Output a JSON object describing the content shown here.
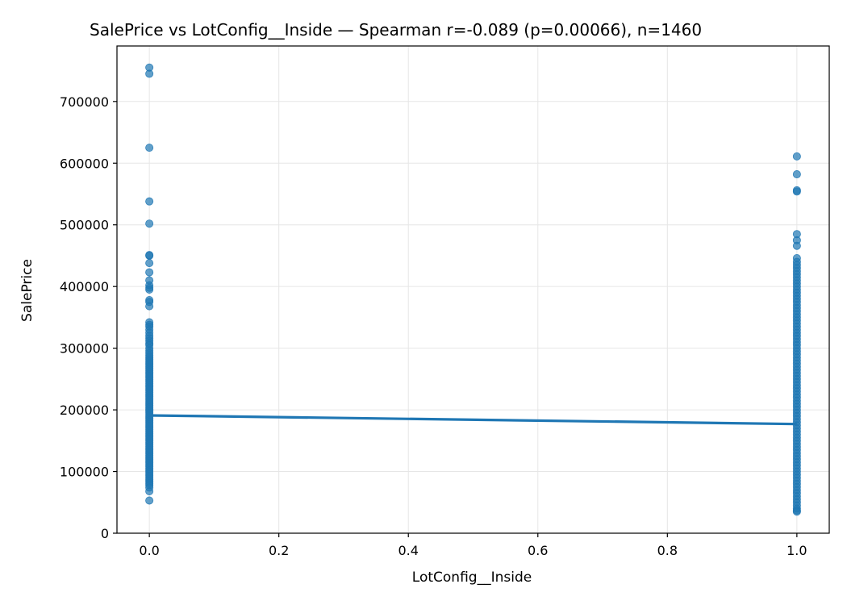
{
  "chart_data": {
    "type": "scatter",
    "title": "SalePrice vs LotConfig__Inside — Spearman r=-0.089 (p=0.00066), n=1460",
    "xlabel": "LotConfig__Inside",
    "ylabel": "SalePrice",
    "xlim": [
      -0.05,
      1.05
    ],
    "ylim": [
      0,
      790000
    ],
    "x_ticks": [
      0.0,
      0.2,
      0.4,
      0.6,
      0.8,
      1.0
    ],
    "x_tick_labels": [
      "0.0",
      "0.2",
      "0.4",
      "0.6",
      "0.8",
      "1.0"
    ],
    "y_ticks": [
      0,
      100000,
      200000,
      300000,
      400000,
      500000,
      600000,
      700000
    ],
    "y_tick_labels": [
      "0",
      "100000",
      "200000",
      "300000",
      "400000",
      "500000",
      "600000",
      "700000"
    ],
    "grid": true,
    "colors": {
      "points": "#1f77b4",
      "trend": "#1f77b4",
      "grid": "#e6e6e6"
    },
    "series": [
      {
        "x": 0,
        "values": [
          755000,
          745000,
          625000,
          538000,
          502000,
          451000,
          450000,
          438000,
          423000,
          410000,
          402000,
          398000,
          395000,
          378000,
          375000,
          368000,
          342000,
          338000,
          335000,
          330000,
          325000,
          320000,
          316000,
          312000,
          308000,
          305000,
          300000,
          296000,
          292000,
          288000,
          285000,
          282000,
          279000,
          276000,
          273000,
          270000,
          267000,
          264000,
          261000,
          258000,
          255000,
          252000,
          249000,
          246000,
          243000,
          240000,
          237000,
          234000,
          231000,
          228000,
          225000,
          222000,
          219000,
          216000,
          213000,
          210000,
          207000,
          204000,
          201000,
          198000,
          195000,
          192000,
          189000,
          186000,
          183000,
          180000,
          177000,
          174000,
          171000,
          168000,
          165000,
          162000,
          159000,
          156000,
          153000,
          150000,
          147000,
          144000,
          141000,
          138000,
          135000,
          132000,
          129000,
          126000,
          123000,
          120000,
          117000,
          114000,
          111000,
          108000,
          105000,
          102000,
          99000,
          96000,
          93000,
          90000,
          87000,
          84000,
          81000,
          78000,
          74000,
          68000,
          53000
        ]
      },
      {
        "x": 1,
        "values": [
          611000,
          582000,
          556000,
          554000,
          485000,
          475000,
          466000,
          446000,
          440000,
          435000,
          430000,
          425000,
          420000,
          415000,
          410000,
          405000,
          400000,
          395000,
          390000,
          385000,
          380000,
          375000,
          370000,
          365000,
          360000,
          355000,
          350000,
          345000,
          340000,
          335000,
          330000,
          325000,
          320000,
          315000,
          310000,
          305000,
          300000,
          295000,
          290000,
          285000,
          280000,
          275000,
          270000,
          265000,
          260000,
          255000,
          250000,
          245000,
          240000,
          235000,
          230000,
          225000,
          220000,
          215000,
          210000,
          205000,
          200000,
          195000,
          190000,
          185000,
          180000,
          175000,
          170000,
          165000,
          160000,
          155000,
          150000,
          145000,
          140000,
          135000,
          130000,
          125000,
          120000,
          115000,
          110000,
          105000,
          100000,
          95000,
          90000,
          85000,
          80000,
          75000,
          70000,
          65000,
          60000,
          55000,
          50000,
          45000,
          40000,
          37000,
          35000
        ]
      }
    ],
    "trend_line": {
      "x": [
        0,
        1
      ],
      "y": [
        191000,
        177000
      ]
    }
  }
}
